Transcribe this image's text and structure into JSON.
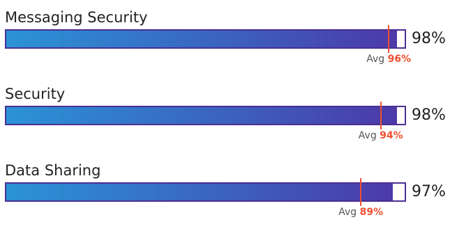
{
  "chart_data": {
    "type": "bar",
    "orientation": "horizontal",
    "range": [
      0,
      100
    ],
    "categories": [
      "Messaging Security",
      "Security",
      "Data Sharing"
    ],
    "values": [
      "98%",
      "98%",
      "97%"
    ],
    "avg_label": "Avg",
    "averages": [
      "96%",
      "94%",
      "89%"
    ],
    "series": [
      {
        "values": [
          98,
          98,
          97
        ]
      },
      {
        "values": [
          96,
          94,
          89
        ]
      }
    ],
    "grid": false,
    "legend": "none"
  },
  "colors": {
    "bar_gradient_start": "#2b93d6",
    "bar_gradient_end": "#4c3aa8",
    "bar_border": "#4a2f93",
    "avg_marker": "#f04e30"
  }
}
